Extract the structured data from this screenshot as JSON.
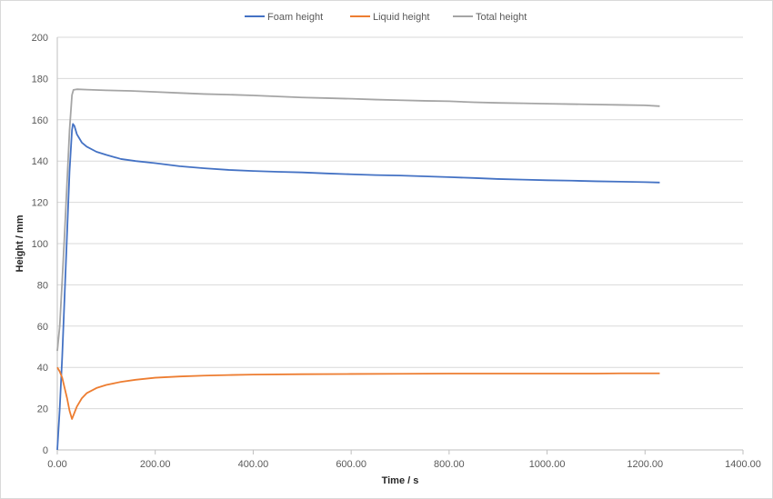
{
  "chart_data": {
    "type": "line",
    "title": "",
    "xlabel": "Time / s",
    "ylabel": "Height / mm",
    "xlim": [
      0,
      1400
    ],
    "ylim": [
      0,
      200
    ],
    "x_ticks": [
      "0.00",
      "200.00",
      "400.00",
      "600.00",
      "800.00",
      "1000.00",
      "1200.00",
      "1400.00"
    ],
    "y_ticks": [
      "0",
      "20",
      "40",
      "60",
      "80",
      "100",
      "120",
      "140",
      "160",
      "180",
      "200"
    ],
    "grid": "horizontal",
    "legend_position": "top",
    "series": [
      {
        "name": "Foam height",
        "color": "#4472c4",
        "points": [
          [
            0,
            0
          ],
          [
            5,
            20
          ],
          [
            10,
            45
          ],
          [
            15,
            75
          ],
          [
            20,
            105
          ],
          [
            25,
            135
          ],
          [
            30,
            155
          ],
          [
            32,
            158
          ],
          [
            35,
            157
          ],
          [
            40,
            153
          ],
          [
            50,
            149
          ],
          [
            60,
            147
          ],
          [
            80,
            144.5
          ],
          [
            100,
            143
          ],
          [
            130,
            141
          ],
          [
            160,
            140
          ],
          [
            200,
            139
          ],
          [
            250,
            137.5
          ],
          [
            300,
            136.5
          ],
          [
            350,
            135.7
          ],
          [
            400,
            135.2
          ],
          [
            450,
            134.8
          ],
          [
            500,
            134.5
          ],
          [
            550,
            134
          ],
          [
            600,
            133.6
          ],
          [
            650,
            133.2
          ],
          [
            700,
            133
          ],
          [
            750,
            132.6
          ],
          [
            800,
            132.2
          ],
          [
            850,
            131.8
          ],
          [
            900,
            131.3
          ],
          [
            950,
            131
          ],
          [
            1000,
            130.7
          ],
          [
            1050,
            130.5
          ],
          [
            1100,
            130.2
          ],
          [
            1150,
            130
          ],
          [
            1200,
            129.8
          ],
          [
            1230,
            129.6
          ]
        ]
      },
      {
        "name": "Liquid height",
        "color": "#ed7d31",
        "points": [
          [
            0,
            40
          ],
          [
            5,
            38
          ],
          [
            10,
            35
          ],
          [
            15,
            30
          ],
          [
            20,
            25
          ],
          [
            25,
            19
          ],
          [
            30,
            15
          ],
          [
            35,
            18
          ],
          [
            40,
            21
          ],
          [
            50,
            25
          ],
          [
            60,
            27.5
          ],
          [
            80,
            30
          ],
          [
            100,
            31.5
          ],
          [
            130,
            33
          ],
          [
            160,
            34
          ],
          [
            200,
            35
          ],
          [
            250,
            35.6
          ],
          [
            300,
            36
          ],
          [
            350,
            36.3
          ],
          [
            400,
            36.5
          ],
          [
            500,
            36.7
          ],
          [
            600,
            36.8
          ],
          [
            700,
            36.9
          ],
          [
            800,
            37
          ],
          [
            900,
            37
          ],
          [
            1000,
            37
          ],
          [
            1100,
            37
          ],
          [
            1150,
            37.1
          ],
          [
            1200,
            37.1
          ],
          [
            1230,
            37.1
          ]
        ]
      },
      {
        "name": "Total height",
        "color": "#a5a5a5",
        "points": [
          [
            0,
            48
          ],
          [
            5,
            60
          ],
          [
            10,
            82
          ],
          [
            15,
            105
          ],
          [
            20,
            130
          ],
          [
            25,
            155
          ],
          [
            30,
            172
          ],
          [
            33,
            174.5
          ],
          [
            40,
            174.8
          ],
          [
            60,
            174.6
          ],
          [
            100,
            174.3
          ],
          [
            150,
            174
          ],
          [
            200,
            173.5
          ],
          [
            250,
            173
          ],
          [
            300,
            172.5
          ],
          [
            350,
            172.2
          ],
          [
            400,
            171.8
          ],
          [
            450,
            171.3
          ],
          [
            500,
            170.8
          ],
          [
            550,
            170.5
          ],
          [
            600,
            170.2
          ],
          [
            650,
            169.8
          ],
          [
            700,
            169.5
          ],
          [
            750,
            169.2
          ],
          [
            800,
            169
          ],
          [
            850,
            168.5
          ],
          [
            900,
            168.2
          ],
          [
            950,
            168
          ],
          [
            1000,
            167.8
          ],
          [
            1050,
            167.6
          ],
          [
            1100,
            167.4
          ],
          [
            1150,
            167.2
          ],
          [
            1200,
            167
          ],
          [
            1230,
            166.6
          ]
        ]
      }
    ]
  }
}
